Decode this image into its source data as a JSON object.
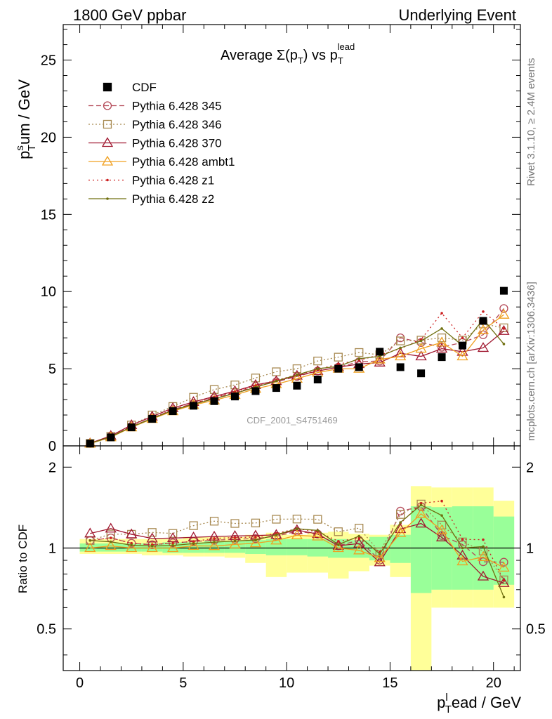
{
  "header": {
    "left_title": "1800 GeV ppbar",
    "right_title": "Underlying Event",
    "plot_title_main": "Average Σ(p",
    "plot_title_sub1": "T",
    "plot_title_mid": ") vs p",
    "plot_title_sub2": "T",
    "plot_title_sup2": "lead",
    "side_label_1": "Rivet 3.1.10, ≥ 2.4M events",
    "side_label_2": "mcplots.cern.ch [arXiv:1306.3436]",
    "watermark": "CDF_2001_S4751469"
  },
  "axes": {
    "ylabel_main": "p",
    "ylabel_main_sup": "s",
    "ylabel_main_sub": "T",
    "ylabel_main_tail": "um / GeV",
    "ylabel_ratio": "Ratio to CDF",
    "xlabel_main": "p",
    "xlabel_main_sup": "l",
    "xlabel_main_sub": "T",
    "xlabel_main_tail": "ead / GeV"
  },
  "colors": {
    "cdf": "#000000",
    "p345": "#b44a58",
    "p346": "#a88a52",
    "p370": "#a01830",
    "ambt1": "#f0a020",
    "z1": "#cc2020",
    "z2": "#707010",
    "band_yellow": "#ffff99",
    "band_green": "#99ff99"
  },
  "chart_data": {
    "type": "line",
    "title": "Average Σ(pT) vs pT lead",
    "xlabel": "pT lead / GeV",
    "ylabel": "pT sum / GeV",
    "xlim": [
      -0.8,
      21.3
    ],
    "ylim": [
      0,
      27.3
    ],
    "ratio_ylim": [
      0.35,
      2.4
    ],
    "x": [
      0.5,
      1.5,
      2.5,
      3.5,
      4.5,
      5.5,
      6.5,
      7.5,
      8.5,
      9.5,
      10.5,
      11.5,
      12.5,
      13.5,
      14.5,
      15.5,
      16.5,
      17.5,
      18.5,
      19.5,
      20.5
    ],
    "x_ticks": [
      0,
      5,
      10,
      15,
      20
    ],
    "y_ticks": [
      0,
      5,
      10,
      15,
      20,
      25
    ],
    "ratio_ticks": [
      0.5,
      1,
      2
    ],
    "legend_position": "top-left",
    "data": {
      "name": "CDF",
      "values": [
        0.15,
        0.55,
        1.2,
        1.75,
        2.25,
        2.6,
        2.9,
        3.2,
        3.55,
        3.75,
        3.9,
        4.3,
        5.0,
        5.1,
        6.1,
        5.1,
        4.7,
        5.75,
        6.5,
        8.1,
        10.05
      ],
      "band_yellow": [
        [
          0.95,
          1.08
        ],
        [
          0.95,
          1.08
        ],
        [
          0.95,
          1.08
        ],
        [
          0.94,
          1.08
        ],
        [
          0.94,
          1.08
        ],
        [
          0.93,
          1.1
        ],
        [
          0.93,
          1.1
        ],
        [
          0.92,
          1.1
        ],
        [
          0.88,
          1.12
        ],
        [
          0.78,
          1.14
        ],
        [
          0.81,
          1.12
        ],
        [
          0.81,
          1.14
        ],
        [
          0.77,
          1.15
        ],
        [
          0.82,
          1.13
        ],
        [
          0.86,
          1.12
        ],
        [
          0.78,
          1.22
        ],
        [
          0.3,
          1.7
        ],
        [
          0.6,
          1.68
        ],
        [
          0.6,
          1.68
        ],
        [
          0.6,
          1.68
        ],
        [
          0.6,
          1.5
        ]
      ],
      "band_green": [
        [
          0.97,
          1.04
        ],
        [
          0.97,
          1.04
        ],
        [
          0.97,
          1.04
        ],
        [
          0.97,
          1.04
        ],
        [
          0.96,
          1.05
        ],
        [
          0.96,
          1.05
        ],
        [
          0.96,
          1.06
        ],
        [
          0.96,
          1.06
        ],
        [
          0.95,
          1.07
        ],
        [
          0.94,
          1.08
        ],
        [
          0.94,
          1.08
        ],
        [
          0.93,
          1.08
        ],
        [
          0.92,
          1.08
        ],
        [
          0.92,
          1.07
        ],
        [
          0.9,
          1.1
        ],
        [
          0.88,
          1.12
        ],
        [
          0.68,
          1.43
        ],
        [
          0.7,
          1.42
        ],
        [
          0.7,
          1.43
        ],
        [
          0.7,
          1.43
        ],
        [
          0.73,
          1.31
        ]
      ]
    },
    "series": [
      {
        "name": "Pythia 6.428 345",
        "color_key": "p345",
        "marker": "circle",
        "dash": "7,4",
        "values": [
          0.16,
          0.6,
          1.25,
          1.8,
          2.35,
          2.75,
          3.1,
          3.45,
          3.85,
          4.15,
          4.5,
          4.85,
          5.1,
          5.45,
          5.5,
          7.0,
          6.7,
          6.4,
          6.7,
          7.2,
          8.9
        ]
      },
      {
        "name": "Pythia 6.428 346",
        "color_key": "p346",
        "marker": "square",
        "dash": "2,3",
        "values": [
          0.16,
          0.62,
          1.35,
          2.0,
          2.55,
          3.15,
          3.65,
          3.95,
          4.4,
          4.8,
          5.0,
          5.5,
          5.75,
          6.05,
          5.9,
          6.8,
          6.85,
          7.0,
          6.85,
          7.9,
          7.65
        ]
      },
      {
        "name": "Pythia 6.428 370",
        "color_key": "p370",
        "marker": "triangle",
        "dash": "",
        "values": [
          0.17,
          0.65,
          1.35,
          1.9,
          2.45,
          2.85,
          3.2,
          3.55,
          3.95,
          4.2,
          4.55,
          4.85,
          5.1,
          5.3,
          5.4,
          6.0,
          5.8,
          6.3,
          6.1,
          6.35,
          7.45
        ]
      },
      {
        "name": "Pythia 6.428 ambt1",
        "color_key": "ambt1",
        "marker": "triangle",
        "dash": "",
        "values": [
          0.15,
          0.56,
          1.2,
          1.75,
          2.25,
          2.65,
          2.95,
          3.3,
          3.7,
          4.0,
          4.35,
          4.75,
          5.0,
          5.0,
          5.6,
          5.8,
          6.3,
          6.7,
          5.8,
          7.5,
          8.5
        ]
      },
      {
        "name": "Pythia 6.428 z1",
        "color_key": "z1",
        "marker": "dot",
        "dash": "2,4",
        "values": [
          0.16,
          0.6,
          1.25,
          1.8,
          2.35,
          2.75,
          3.15,
          3.5,
          3.9,
          4.25,
          4.6,
          4.95,
          5.3,
          5.55,
          5.9,
          6.3,
          6.9,
          8.6,
          7.0,
          8.7,
          7.6
        ]
      },
      {
        "name": "Pythia 6.428 z2",
        "color_key": "z2",
        "marker": "dot",
        "dash": "",
        "values": [
          0.16,
          0.58,
          1.23,
          1.78,
          2.3,
          2.7,
          3.05,
          3.4,
          3.8,
          4.2,
          4.6,
          5.0,
          5.15,
          5.65,
          5.8,
          6.35,
          6.8,
          7.6,
          6.5,
          8.2,
          6.6
        ]
      }
    ]
  }
}
